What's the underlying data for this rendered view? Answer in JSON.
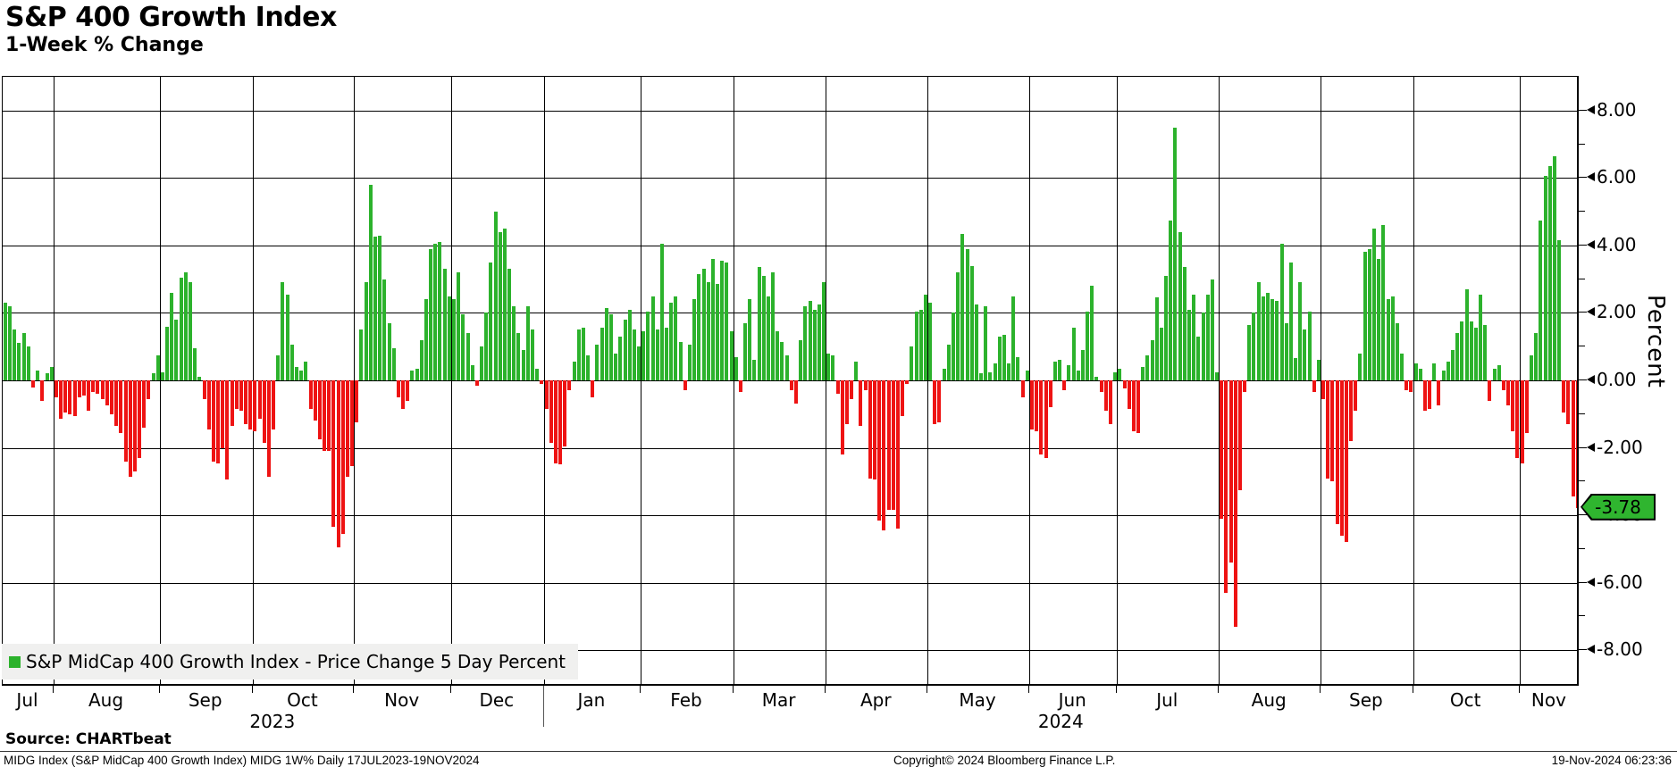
{
  "header": {
    "title": "S&P 400 Growth Index",
    "subtitle": "1-Week % Change"
  },
  "legend": {
    "label": "S&P MidCap 400 Growth Index - Price Change 5 Day Percent",
    "swatch_color": "#2cb22c"
  },
  "y_axis": {
    "title": "Percent",
    "major_ticks": [
      8,
      6,
      4,
      2,
      0,
      -2,
      -4,
      -6,
      -8
    ],
    "major_tick_labels": [
      "8.00",
      "6.00",
      "4.00",
      "2.00",
      "0.00",
      "-2.00",
      "-4.00",
      "-6.00",
      "-8.00"
    ],
    "minor_ticks": [
      7,
      5,
      3,
      1,
      -1,
      -3,
      -5,
      -7
    ],
    "top_value": 9.0,
    "bottom_value": -9.08,
    "last_value_label": "-3.78",
    "last_value": -3.78,
    "badge_color": "#2fb52f"
  },
  "footer": {
    "source": "Source: CHARTbeat",
    "left": "MIDG Index (S&P MidCap 400 Growth Index) MIDG 1W%  Daily 17JUL2023-19NOV2024",
    "center": "Copyright© 2024 Bloomberg Finance L.P.",
    "right": "19-Nov-2024 06:23:36"
  },
  "chart_data": {
    "type": "bar",
    "series_name": "S&P MidCap 400 Growth Index - Price Change 5 Day Percent",
    "ylabel": "Percent",
    "ylim": [
      -9.08,
      9.0
    ],
    "positive_color": "#2cb22c",
    "negative_color": "#ee1313",
    "grid": true,
    "legend_position": "bottom-left",
    "years": [
      {
        "label": "2023",
        "months": [
          "Jul",
          "Aug",
          "Sep",
          "Oct",
          "Nov",
          "Dec"
        ]
      },
      {
        "label": "2024",
        "months": [
          "Jan",
          "Feb",
          "Mar",
          "Apr",
          "May",
          "Jun",
          "Jul",
          "Aug",
          "Sep",
          "Oct",
          "Nov"
        ]
      }
    ],
    "months": [
      {
        "label": "Jul",
        "year": "2023",
        "values": [
          2.3,
          2.2,
          1.5,
          1.1,
          1.4,
          1.0,
          -0.2,
          0.3,
          -0.6,
          0.2,
          0.4
        ]
      },
      {
        "label": "Aug",
        "year": "2023",
        "values": [
          -0.5,
          -1.15,
          -0.95,
          -1.0,
          -1.05,
          -0.5,
          -0.45,
          -0.9,
          -0.35,
          -0.4,
          -0.55,
          -0.75,
          -1.0,
          -1.35,
          -1.55,
          -2.4,
          -2.85,
          -2.7,
          -2.3,
          -1.4,
          -0.55,
          0.2,
          0.75
        ]
      },
      {
        "label": "Sep",
        "year": "2023",
        "values": [
          0.25,
          1.6,
          2.6,
          1.8,
          3.05,
          3.2,
          2.9,
          0.95,
          0.1,
          -0.55,
          -1.45,
          -2.4,
          -2.45,
          -2.0,
          -2.95,
          -1.35,
          -0.85,
          -0.9,
          -1.3,
          -1.45
        ]
      },
      {
        "label": "Oct",
        "year": "2023",
        "values": [
          -1.5,
          -1.15,
          -1.85,
          -2.85,
          -1.45,
          0.75,
          2.9,
          2.55,
          1.05,
          0.4,
          0.3,
          0.55,
          -0.85,
          -1.2,
          -1.75,
          -2.1,
          -2.1,
          -4.35,
          -4.95,
          -4.55,
          -2.85,
          -2.55
        ]
      },
      {
        "label": "Nov",
        "year": "2023",
        "values": [
          -1.25,
          1.5,
          2.9,
          5.8,
          4.25,
          4.3,
          3.0,
          1.7,
          0.95,
          -0.5,
          -0.85,
          -0.6,
          0.3,
          0.35,
          1.2,
          2.4,
          3.9,
          4.05,
          4.1,
          3.3,
          2.5
        ]
      },
      {
        "label": "Dec",
        "year": "2023",
        "values": [
          2.4,
          3.2,
          1.95,
          1.4,
          0.45,
          -0.15,
          1.0,
          2.0,
          3.5,
          5.0,
          4.4,
          4.5,
          3.3,
          2.2,
          1.4,
          0.9,
          2.2,
          1.5,
          0.35,
          -0.1
        ]
      },
      {
        "label": "Jan",
        "year": "2024",
        "values": [
          -0.85,
          -1.85,
          -2.45,
          -2.5,
          -1.95,
          -0.3,
          0.55,
          1.5,
          1.55,
          0.75,
          -0.5,
          1.05,
          1.55,
          2.15,
          1.95,
          0.8,
          1.3,
          1.8,
          2.1,
          1.5,
          1.0
        ]
      },
      {
        "label": "Feb",
        "year": "2024",
        "values": [
          1.45,
          2.05,
          2.5,
          1.5,
          4.05,
          1.55,
          2.3,
          2.5,
          1.15,
          -0.3,
          1.05,
          2.4,
          3.15,
          3.3,
          2.9,
          3.6,
          2.85,
          3.55,
          3.5,
          1.45
        ]
      },
      {
        "label": "Mar",
        "year": "2024",
        "values": [
          0.7,
          -0.35,
          1.7,
          2.4,
          0.6,
          3.35,
          3.1,
          2.5,
          3.2,
          1.45,
          1.15,
          0.75,
          -0.3,
          -0.7,
          1.2,
          2.2,
          2.35,
          2.1,
          2.25,
          2.9
        ]
      },
      {
        "label": "Apr",
        "year": "2024",
        "values": [
          0.8,
          0.75,
          -0.4,
          -2.2,
          -1.3,
          -0.55,
          0.55,
          -1.35,
          -0.3,
          -2.9,
          -2.95,
          -4.15,
          -4.45,
          -3.85,
          -3.85,
          -4.4,
          -1.05,
          -0.1,
          1.0,
          2.05,
          2.1,
          2.55
        ]
      },
      {
        "label": "May",
        "year": "2024",
        "values": [
          2.3,
          -1.3,
          -1.25,
          0.35,
          1.05,
          2.0,
          3.2,
          4.35,
          3.9,
          3.4,
          2.25,
          0.2,
          2.2,
          0.25,
          0.5,
          1.3,
          1.35,
          0.5,
          2.5,
          0.7,
          -0.5,
          0.3
        ]
      },
      {
        "label": "Jun",
        "year": "2024",
        "values": [
          -1.45,
          -1.5,
          -2.2,
          -2.3,
          -0.8,
          0.55,
          0.6,
          -0.3,
          0.45,
          1.55,
          0.3,
          0.9,
          2.05,
          2.8,
          0.1,
          -0.35,
          -0.9,
          -1.3,
          0.25
        ]
      },
      {
        "label": "Jul",
        "year": "2024",
        "values": [
          0.35,
          -0.25,
          -0.85,
          -1.5,
          -1.55,
          0.4,
          0.75,
          1.2,
          2.45,
          1.55,
          3.1,
          4.75,
          7.5,
          4.4,
          3.35,
          2.1,
          2.55,
          1.3,
          2.0,
          2.55,
          3.0,
          0.25
        ]
      },
      {
        "label": "Aug",
        "year": "2024",
        "values": [
          -4.1,
          -6.3,
          -5.4,
          -7.3,
          -3.25,
          -0.35,
          1.65,
          2.0,
          2.9,
          2.5,
          2.6,
          2.4,
          2.35,
          4.05,
          1.7,
          3.5,
          0.65,
          2.9,
          1.5,
          2.05,
          -0.35,
          0.6
        ]
      },
      {
        "label": "Sep",
        "year": "2024",
        "values": [
          -0.55,
          -2.9,
          -3.0,
          -4.25,
          -4.6,
          -4.8,
          -1.8,
          -0.9,
          0.8,
          3.8,
          3.9,
          4.5,
          3.6,
          4.6,
          2.4,
          2.5,
          1.7,
          0.8,
          -0.3,
          -0.35
        ]
      },
      {
        "label": "Oct",
        "year": "2024",
        "values": [
          0.5,
          0.35,
          -0.9,
          -0.85,
          0.5,
          -0.75,
          0.3,
          0.55,
          0.9,
          1.4,
          1.75,
          2.7,
          1.75,
          1.55,
          2.55,
          1.65,
          -0.6,
          0.35,
          0.45,
          -0.3,
          -0.75,
          -1.5,
          -2.3
        ]
      },
      {
        "label": "Nov",
        "year": "2024",
        "values": [
          -2.45,
          -1.55,
          0.75,
          1.4,
          4.75,
          6.05,
          6.35,
          6.65,
          4.15,
          -0.95,
          -1.3,
          -3.45,
          -3.78
        ]
      }
    ]
  }
}
